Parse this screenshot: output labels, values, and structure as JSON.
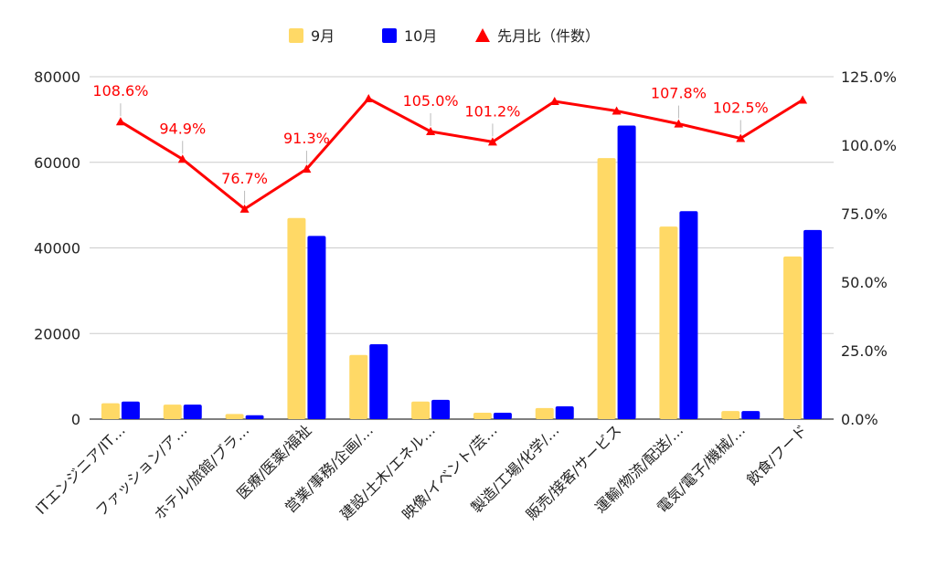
{
  "chart_data": {
    "type": "bar",
    "categories": [
      "ITエンジニア/IT…",
      "ファッション/ア…",
      "ホテル/旅館/ブラ…",
      "医療/医薬/福祉",
      "営業/事務/企画/…",
      "建設/土木/エネル…",
      "映像/イベント/芸…",
      "製造/工場/化学/…",
      "販売/接客/サービス",
      "運輸/物流/配送/…",
      "電気/電子/機械/…",
      "飲食/フード"
    ],
    "series": [
      {
        "name": "9月",
        "values": [
          3700,
          3400,
          1200,
          47000,
          15000,
          4100,
          1500,
          2600,
          61000,
          45000,
          1900,
          38000
        ],
        "color": "#ffd966"
      },
      {
        "name": "10月",
        "values": [
          4100,
          3400,
          900,
          42800,
          17500,
          4500,
          1500,
          3000,
          68600,
          48600,
          1900,
          44200
        ],
        "color": "#0000ff"
      }
    ],
    "line_series": {
      "name": "先月比（件数）",
      "values": [
        108.6,
        94.9,
        76.7,
        91.3,
        117.0,
        105.0,
        101.2,
        116.0,
        112.5,
        107.8,
        102.5,
        116.5
      ],
      "labels": [
        "108.6%",
        "94.9%",
        "76.7%",
        "91.3%",
        "",
        "105.0%",
        "101.2%",
        "",
        "",
        "107.8%",
        "102.5%",
        ""
      ],
      "color": "#ff0000",
      "axis": "right"
    },
    "y_left": {
      "ticks": [
        "0",
        "20000",
        "40000",
        "60000",
        "80000"
      ],
      "range": [
        0,
        80000
      ]
    },
    "y_right": {
      "ticks": [
        "0.0%",
        "25.0%",
        "50.0%",
        "75.0%",
        "100.0%",
        "125.0%"
      ],
      "range": [
        0,
        125
      ]
    },
    "legend": {
      "placement": "top-center",
      "items": [
        "9月",
        "10月",
        "先月比（件数）"
      ]
    },
    "grid": true,
    "title": "",
    "xlabel": "",
    "ylabel": ""
  }
}
